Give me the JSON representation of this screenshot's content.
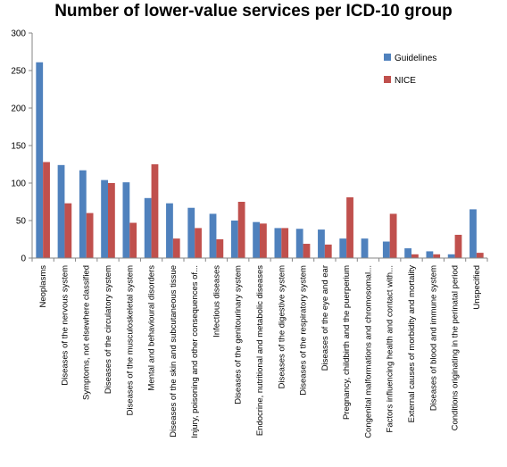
{
  "chart_data": {
    "type": "bar",
    "title": "Number of lower-value services per ICD-10 group",
    "xlabel": "",
    "ylabel": "",
    "ylim": [
      0,
      300
    ],
    "yticks": [
      0,
      50,
      100,
      150,
      200,
      250,
      300
    ],
    "grid": false,
    "legend_position": "top-right",
    "categories": [
      "Neoplasms",
      "Diseases of the nervous system",
      "Symptoms, not elsewhere classified",
      "Diseases of the circulatory system",
      "Diseases of the musculoskeletal system",
      "Mental and behavioural disorders",
      "Diseases of the skin and subcutaneous tissue",
      "Injury, poisoning and other consequences of...",
      "Infectious diseases",
      "Diseases of the genitourinary system",
      "Endocrine, nutritional and metabolic diseases",
      "Diseases of the digestive system",
      "Diseases of the respiratory system",
      "Diseases of the eye and ear",
      "Pregnancy, childbirth and the puerperium",
      "Congenital malformations and chromosomal...",
      "Factors influencing health and contact with...",
      "External causes of morbidity and mortality",
      "Diseases of blood and immune system",
      "Conditions originating in the perinatal period",
      "Unspecified"
    ],
    "series": [
      {
        "name": "Guidelines",
        "color": "#4F81BD",
        "values": [
          261,
          124,
          117,
          104,
          101,
          80,
          73,
          67,
          59,
          50,
          48,
          40,
          39,
          38,
          26,
          26,
          22,
          13,
          9,
          5,
          65
        ]
      },
      {
        "name": "NICE",
        "color": "#C0504D",
        "values": [
          128,
          73,
          60,
          100,
          47,
          125,
          26,
          40,
          25,
          75,
          46,
          40,
          19,
          18,
          81,
          0,
          59,
          5,
          5,
          31,
          7
        ]
      }
    ]
  }
}
